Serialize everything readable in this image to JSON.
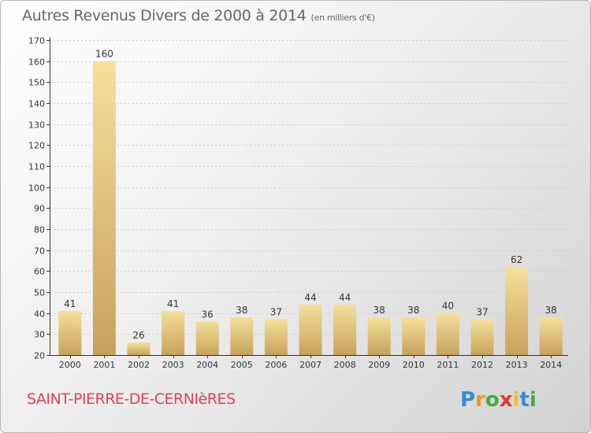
{
  "header": {
    "title": "Autres Revenus Divers de 2000 à 2014",
    "unit": "(en milliers d'€)"
  },
  "footer": {
    "commune": "SAINT-PIERRE-DE-CERNIèRES",
    "logo_text": "Proxiti"
  },
  "colors": {
    "bar_light": "#f6e09a",
    "bar_dark": "#c7a25c",
    "axis": "#333333",
    "grid": "#cccccc",
    "title": "#666666",
    "commune": "#e0405a"
  },
  "chart_data": {
    "type": "bar",
    "title": "Autres Revenus Divers de 2000 à 2014",
    "subtitle": "(en milliers d'€)",
    "xlabel": "",
    "ylabel": "",
    "categories": [
      "2000",
      "2001",
      "2002",
      "2003",
      "2004",
      "2005",
      "2006",
      "2007",
      "2008",
      "2009",
      "2010",
      "2011",
      "2012",
      "2013",
      "2014"
    ],
    "values": [
      41,
      160,
      26,
      41,
      36,
      38,
      37,
      44,
      44,
      38,
      38,
      40,
      37,
      62,
      38
    ],
    "data_labels": [
      "41",
      "160",
      "26",
      "41",
      "36",
      "38",
      "37",
      "44",
      "44",
      "38",
      "38",
      "40",
      "37",
      "62",
      "38"
    ],
    "ylim": [
      20,
      170
    ],
    "yticks": [
      "20",
      "30",
      "40",
      "50",
      "60",
      "70",
      "80",
      "90",
      "100",
      "110",
      "120",
      "130",
      "140",
      "150",
      "160",
      "170"
    ],
    "grid": true,
    "legend": "none"
  }
}
